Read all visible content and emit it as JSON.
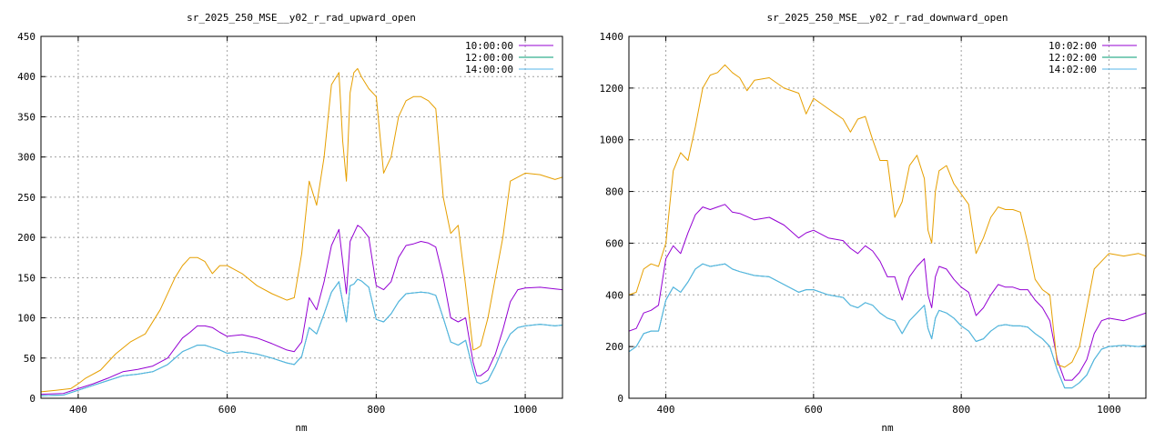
{
  "chart_data": [
    {
      "type": "line",
      "title": "sr_2025_250_MSE__y02_r_rad_upward_open",
      "xlabel": "nm",
      "ylabel": "",
      "xlim": [
        350,
        1050
      ],
      "ylim": [
        0,
        450
      ],
      "xticks": [
        400,
        600,
        800,
        1000
      ],
      "yticks": [
        0,
        50,
        100,
        150,
        200,
        250,
        300,
        350,
        400,
        450
      ],
      "grid": true,
      "legend_position": "top-right",
      "series": [
        {
          "name": "10:00:00",
          "color": "#9400d3",
          "x": [
            350,
            380,
            400,
            420,
            440,
            460,
            480,
            500,
            520,
            540,
            550,
            560,
            570,
            580,
            590,
            600,
            620,
            640,
            660,
            680,
            690,
            700,
            710,
            720,
            730,
            740,
            750,
            755,
            760,
            765,
            770,
            775,
            780,
            790,
            800,
            810,
            820,
            830,
            840,
            850,
            860,
            870,
            880,
            890,
            900,
            910,
            920,
            930,
            935,
            940,
            950,
            960,
            970,
            980,
            990,
            1000,
            1020,
            1040,
            1050
          ],
          "y": [
            5,
            6,
            12,
            18,
            25,
            33,
            36,
            40,
            50,
            75,
            82,
            90,
            90,
            88,
            82,
            77,
            79,
            75,
            68,
            60,
            58,
            70,
            125,
            110,
            145,
            190,
            210,
            170,
            130,
            195,
            205,
            215,
            212,
            200,
            140,
            135,
            145,
            175,
            190,
            192,
            195,
            193,
            188,
            150,
            100,
            95,
            100,
            45,
            28,
            28,
            35,
            55,
            85,
            120,
            135,
            137,
            138,
            136,
            135
          ]
        },
        {
          "name": "12:00:00",
          "color": "#009e73",
          "x": [
            350,
            380,
            400,
            420,
            440,
            460,
            480,
            500,
            520,
            540,
            550,
            560,
            570,
            580,
            590,
            600,
            620,
            640,
            660,
            680,
            690,
            700,
            710,
            720,
            730,
            740,
            750,
            755,
            760,
            765,
            770,
            775,
            780,
            790,
            800,
            810,
            820,
            830,
            840,
            850,
            860,
            870,
            880,
            890,
            900,
            910,
            920,
            930,
            935,
            940,
            950,
            960,
            970,
            980,
            990,
            1000,
            1020,
            1040,
            1050
          ],
          "y": [
            3,
            4,
            10,
            16,
            22,
            28,
            30,
            33,
            42,
            58,
            62,
            66,
            66,
            63,
            60,
            56,
            58,
            55,
            50,
            44,
            42,
            52,
            88,
            80,
            105,
            132,
            145,
            120,
            95,
            140,
            142,
            148,
            146,
            138,
            98,
            95,
            105,
            120,
            130,
            131,
            132,
            131,
            128,
            100,
            70,
            66,
            72,
            35,
            20,
            18,
            22,
            40,
            62,
            80,
            88,
            90,
            92,
            90,
            91
          ]
        },
        {
          "name": "14:00:00",
          "color": "#56b4e9",
          "x": [
            350,
            380,
            400,
            420,
            440,
            460,
            480,
            500,
            520,
            540,
            550,
            560,
            570,
            580,
            590,
            600,
            620,
            640,
            660,
            680,
            690,
            700,
            710,
            720,
            730,
            740,
            750,
            755,
            760,
            765,
            770,
            775,
            780,
            790,
            800,
            810,
            820,
            830,
            840,
            850,
            860,
            870,
            880,
            890,
            900,
            910,
            920,
            930,
            935,
            940,
            950,
            960,
            970,
            980,
            990,
            1000,
            1020,
            1040,
            1050
          ],
          "y": [
            3,
            4,
            10,
            16,
            22,
            28,
            30,
            33,
            42,
            58,
            62,
            66,
            66,
            63,
            60,
            56,
            58,
            55,
            50,
            44,
            42,
            52,
            88,
            80,
            105,
            132,
            145,
            120,
            95,
            140,
            142,
            148,
            146,
            138,
            98,
            95,
            105,
            120,
            130,
            131,
            132,
            131,
            128,
            100,
            70,
            66,
            72,
            35,
            20,
            18,
            22,
            40,
            62,
            80,
            88,
            90,
            92,
            90,
            91
          ]
        },
        {
          "name": "",
          "color": "#e69f00",
          "x": [
            350,
            370,
            390,
            400,
            410,
            430,
            450,
            470,
            490,
            510,
            530,
            540,
            550,
            560,
            570,
            580,
            590,
            600,
            620,
            640,
            660,
            680,
            690,
            700,
            710,
            720,
            730,
            740,
            750,
            755,
            760,
            765,
            770,
            775,
            780,
            790,
            800,
            810,
            820,
            830,
            840,
            850,
            860,
            870,
            880,
            890,
            900,
            910,
            920,
            930,
            935,
            940,
            950,
            960,
            970,
            980,
            990,
            1000,
            1020,
            1040,
            1050
          ],
          "y": [
            8,
            10,
            12,
            18,
            25,
            35,
            55,
            70,
            80,
            110,
            150,
            165,
            175,
            175,
            170,
            155,
            165,
            165,
            155,
            140,
            130,
            122,
            125,
            180,
            270,
            240,
            300,
            390,
            405,
            320,
            270,
            380,
            405,
            410,
            400,
            385,
            375,
            280,
            300,
            350,
            370,
            375,
            375,
            370,
            360,
            250,
            205,
            215,
            140,
            60,
            62,
            65,
            100,
            150,
            200,
            270,
            275,
            280,
            278,
            272,
            275
          ]
        }
      ]
    },
    {
      "type": "line",
      "title": "sr_2025_250_MSE__y02_r_rad_downward_open",
      "xlabel": "nm",
      "ylabel": "",
      "xlim": [
        350,
        1050
      ],
      "ylim": [
        0,
        1400
      ],
      "xticks": [
        400,
        600,
        800,
        1000
      ],
      "yticks": [
        0,
        200,
        400,
        600,
        800,
        1000,
        1200,
        1400
      ],
      "grid": true,
      "legend_position": "top-right",
      "series": [
        {
          "name": "10:02:00",
          "color": "#9400d3",
          "x": [
            350,
            360,
            370,
            380,
            390,
            400,
            410,
            420,
            430,
            440,
            450,
            460,
            470,
            480,
            490,
            500,
            520,
            540,
            560,
            580,
            590,
            600,
            620,
            640,
            650,
            660,
            670,
            680,
            690,
            700,
            710,
            720,
            730,
            740,
            750,
            755,
            760,
            765,
            770,
            780,
            790,
            800,
            810,
            820,
            830,
            840,
            850,
            860,
            870,
            880,
            890,
            900,
            910,
            920,
            930,
            940,
            950,
            960,
            970,
            980,
            990,
            1000,
            1020,
            1040,
            1050
          ],
          "y": [
            260,
            270,
            330,
            340,
            360,
            540,
            590,
            560,
            640,
            710,
            740,
            730,
            740,
            750,
            720,
            715,
            690,
            700,
            670,
            620,
            640,
            650,
            620,
            610,
            580,
            560,
            590,
            570,
            530,
            470,
            470,
            380,
            470,
            510,
            540,
            400,
            350,
            470,
            510,
            500,
            460,
            430,
            410,
            320,
            350,
            400,
            440,
            430,
            430,
            420,
            420,
            380,
            350,
            300,
            150,
            70,
            70,
            100,
            150,
            250,
            300,
            310,
            300,
            320,
            330
          ]
        },
        {
          "name": "12:02:00",
          "color": "#009e73",
          "x": [
            350,
            360,
            370,
            380,
            390,
            400,
            410,
            420,
            430,
            440,
            450,
            460,
            470,
            480,
            490,
            500,
            520,
            540,
            560,
            580,
            590,
            600,
            620,
            640,
            650,
            660,
            670,
            680,
            690,
            700,
            710,
            720,
            730,
            740,
            750,
            755,
            760,
            765,
            770,
            780,
            790,
            800,
            810,
            820,
            830,
            840,
            850,
            860,
            870,
            880,
            890,
            900,
            910,
            920,
            930,
            940,
            950,
            960,
            970,
            980,
            990,
            1000,
            1020,
            1040,
            1050
          ],
          "y": [
            180,
            200,
            250,
            260,
            260,
            380,
            430,
            410,
            450,
            500,
            520,
            510,
            515,
            520,
            500,
            490,
            475,
            470,
            440,
            410,
            420,
            420,
            400,
            390,
            360,
            350,
            370,
            360,
            330,
            310,
            300,
            250,
            300,
            330,
            360,
            270,
            230,
            310,
            340,
            330,
            310,
            280,
            260,
            220,
            230,
            260,
            280,
            285,
            280,
            280,
            275,
            250,
            230,
            200,
            110,
            40,
            40,
            60,
            90,
            150,
            190,
            200,
            205,
            200,
            205
          ]
        },
        {
          "name": "14:02:00",
          "color": "#56b4e9",
          "x": [
            350,
            360,
            370,
            380,
            390,
            400,
            410,
            420,
            430,
            440,
            450,
            460,
            470,
            480,
            490,
            500,
            520,
            540,
            560,
            580,
            590,
            600,
            620,
            640,
            650,
            660,
            670,
            680,
            690,
            700,
            710,
            720,
            730,
            740,
            750,
            755,
            760,
            765,
            770,
            780,
            790,
            800,
            810,
            820,
            830,
            840,
            850,
            860,
            870,
            880,
            890,
            900,
            910,
            920,
            930,
            940,
            950,
            960,
            970,
            980,
            990,
            1000,
            1020,
            1040,
            1050
          ],
          "y": [
            180,
            200,
            250,
            260,
            260,
            380,
            430,
            410,
            450,
            500,
            520,
            510,
            515,
            520,
            500,
            490,
            475,
            470,
            440,
            410,
            420,
            420,
            400,
            390,
            360,
            350,
            370,
            360,
            330,
            310,
            300,
            250,
            300,
            330,
            360,
            270,
            230,
            310,
            340,
            330,
            310,
            280,
            260,
            220,
            230,
            260,
            280,
            285,
            280,
            280,
            275,
            250,
            230,
            200,
            110,
            40,
            40,
            60,
            90,
            150,
            190,
            200,
            205,
            200,
            205
          ]
        },
        {
          "name": "",
          "color": "#e69f00",
          "x": [
            350,
            360,
            370,
            380,
            390,
            400,
            410,
            420,
            430,
            440,
            450,
            460,
            470,
            480,
            490,
            500,
            510,
            520,
            540,
            560,
            580,
            590,
            600,
            610,
            620,
            630,
            640,
            650,
            660,
            670,
            680,
            690,
            700,
            710,
            720,
            730,
            740,
            750,
            755,
            760,
            765,
            770,
            780,
            790,
            800,
            810,
            820,
            830,
            840,
            850,
            860,
            870,
            880,
            890,
            900,
            910,
            920,
            930,
            940,
            950,
            960,
            970,
            980,
            990,
            1000,
            1020,
            1040,
            1050
          ],
          "y": [
            400,
            410,
            500,
            520,
            510,
            600,
            880,
            950,
            920,
            1050,
            1200,
            1250,
            1260,
            1290,
            1260,
            1240,
            1190,
            1230,
            1240,
            1200,
            1180,
            1100,
            1160,
            1140,
            1120,
            1100,
            1080,
            1030,
            1080,
            1090,
            1000,
            920,
            920,
            700,
            760,
            900,
            940,
            850,
            650,
            600,
            800,
            880,
            900,
            830,
            790,
            750,
            560,
            620,
            700,
            740,
            730,
            730,
            720,
            600,
            460,
            420,
            400,
            130,
            120,
            140,
            200,
            350,
            500,
            530,
            560,
            550,
            560,
            550
          ]
        }
      ]
    }
  ]
}
